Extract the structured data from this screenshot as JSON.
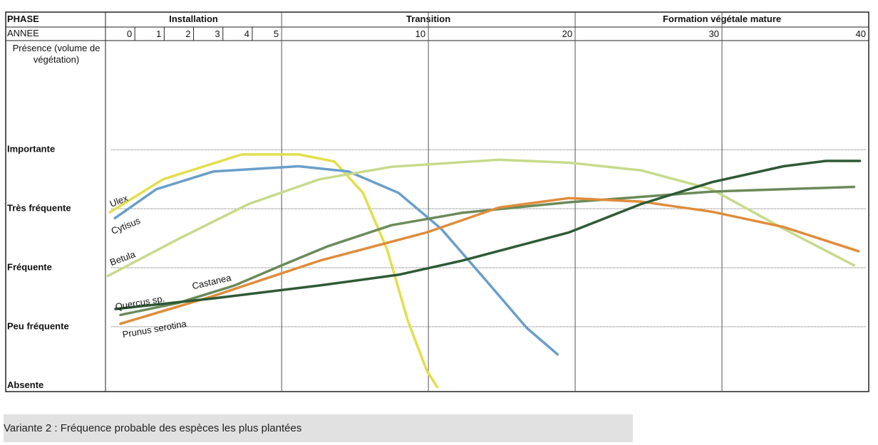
{
  "chart_data": {
    "type": "line",
    "phase_header": "PHASE",
    "year_header": "ANNEE",
    "y_title": "Présence (volume de végétation)",
    "phases": [
      "Installation",
      "Transition",
      "Formation végétale mature"
    ],
    "caption": "Variante 2 : Fréquence probable des espèces les plus plantées",
    "xlim": [
      -1,
      40
    ],
    "xticks": [
      0,
      1,
      2,
      3,
      4,
      5,
      10,
      20,
      30,
      40
    ],
    "ylim": [
      -0.1,
      5.85
    ],
    "yticks": [
      {
        "value": 0,
        "label": "Absente"
      },
      {
        "value": 1,
        "label": "Peu fréquente"
      },
      {
        "value": 2,
        "label": "Fréquente"
      },
      {
        "value": 3,
        "label": "Très fréquente"
      },
      {
        "value": 4,
        "label": "Importante"
      }
    ],
    "grid": true,
    "series": [
      {
        "name": "Ulex",
        "color": "#e2df4c",
        "x": [
          -0.85,
          0.97,
          3.64,
          5.58,
          6.8,
          7.77,
          8.6,
          9.3,
          9.95,
          10.6
        ],
        "values": [
          2.94,
          3.5,
          3.92,
          3.92,
          3.8,
          3.27,
          2.3,
          1.1,
          0.25,
          -0.02
        ]
      },
      {
        "name": "Cytisus",
        "color": "#6a9ec9",
        "x": [
          -0.68,
          0.73,
          2.67,
          5.58,
          7.28,
          8.98,
          10.87,
          13.8,
          16.7,
          18.8
        ],
        "values": [
          2.84,
          3.33,
          3.63,
          3.72,
          3.63,
          3.27,
          2.66,
          1.82,
          0.98,
          0.53
        ]
      },
      {
        "name": "Betula",
        "color": "#c7da8c",
        "x": [
          -0.92,
          1.46,
          3.88,
          6.3,
          8.74,
          14.8,
          19.6,
          24.5,
          29.3,
          34.2,
          39.0
        ],
        "values": [
          1.86,
          2.48,
          3.08,
          3.5,
          3.71,
          3.83,
          3.78,
          3.65,
          3.33,
          2.66,
          2.04
        ]
      },
      {
        "name": "Castanea",
        "color": "#6b8a5a",
        "x": [
          -0.49,
          1.46,
          3.4,
          5.1,
          6.55,
          8.74,
          12.3,
          19.6,
          29.3,
          39.0
        ],
        "values": [
          1.2,
          1.4,
          1.7,
          2.06,
          2.36,
          2.72,
          2.93,
          3.11,
          3.29,
          3.37
        ]
      },
      {
        "name": "Prunus serotina",
        "color": "#e08c3a",
        "x": [
          -0.49,
          2.67,
          6.3,
          9.95,
          14.8,
          19.6,
          24.5,
          29.3,
          34.2,
          39.3
        ],
        "values": [
          1.05,
          1.52,
          2.12,
          2.6,
          3.02,
          3.18,
          3.12,
          2.95,
          2.69,
          2.28
        ]
      },
      {
        "name": "Quercus sp.",
        "color": "#2e5a35",
        "x": [
          -0.66,
          2.67,
          6.3,
          8.98,
          12.3,
          19.6,
          24.5,
          29.3,
          34.2,
          37.1,
          39.4
        ],
        "values": [
          1.3,
          1.48,
          1.7,
          1.88,
          2.12,
          2.6,
          3.08,
          3.45,
          3.72,
          3.81,
          3.81
        ]
      }
    ]
  }
}
